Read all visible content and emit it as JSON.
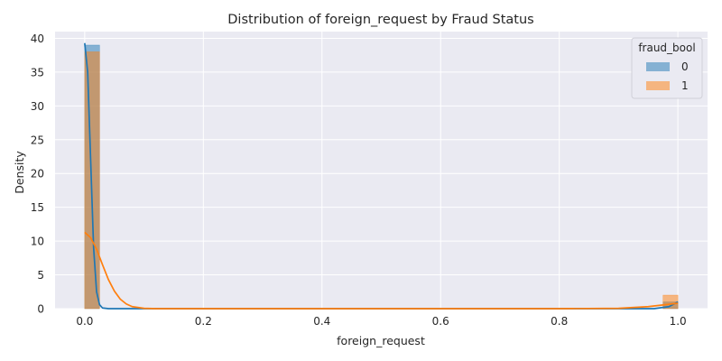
{
  "chart_data": {
    "type": "histogram",
    "title": "Distribution of foreign_request by Fraud Status",
    "xlabel": "foreign_request",
    "ylabel": "Density",
    "xlim": [
      -0.05,
      1.05
    ],
    "ylim": [
      0,
      41
    ],
    "xticks": [
      "0.0",
      "0.2",
      "0.4",
      "0.6",
      "0.8",
      "1.0"
    ],
    "xtick_values": [
      0,
      0.2,
      0.4,
      0.6,
      0.8,
      1.0
    ],
    "yticks": [
      "0",
      "5",
      "10",
      "15",
      "20",
      "25",
      "30",
      "35",
      "40"
    ],
    "ytick_values": [
      0,
      5,
      10,
      15,
      20,
      25,
      30,
      35,
      40
    ],
    "grid": true,
    "legend": {
      "title": "fraud_bool",
      "placement": "top-right",
      "entries": [
        "0",
        "1"
      ]
    },
    "series": [
      {
        "name": "0",
        "color": "#1f77b4",
        "bins": [
          {
            "x0": 0.0,
            "x1": 0.025,
            "density": 39.0
          },
          {
            "x0": 0.975,
            "x1": 1.0,
            "density": 1.0
          }
        ],
        "kde": [
          [
            0.0,
            39.3
          ],
          [
            0.005,
            35.0
          ],
          [
            0.01,
            22.0
          ],
          [
            0.015,
            9.0
          ],
          [
            0.02,
            2.5
          ],
          [
            0.025,
            0.6
          ],
          [
            0.03,
            0.1
          ],
          [
            0.04,
            0.0
          ],
          [
            0.2,
            0.0
          ],
          [
            0.6,
            0.0
          ],
          [
            0.96,
            0.0
          ],
          [
            0.985,
            0.3
          ],
          [
            1.0,
            1.0
          ]
        ]
      },
      {
        "name": "1",
        "color": "#ff7f0e",
        "bins": [
          {
            "x0": 0.0,
            "x1": 0.025,
            "density": 38.0
          },
          {
            "x0": 0.975,
            "x1": 1.0,
            "density": 2.0
          }
        ],
        "kde": [
          [
            0.0,
            11.3
          ],
          [
            0.01,
            10.5
          ],
          [
            0.02,
            8.8
          ],
          [
            0.03,
            6.5
          ],
          [
            0.04,
            4.3
          ],
          [
            0.05,
            2.6
          ],
          [
            0.06,
            1.4
          ],
          [
            0.07,
            0.7
          ],
          [
            0.08,
            0.3
          ],
          [
            0.1,
            0.05
          ],
          [
            0.12,
            0.0
          ],
          [
            0.8,
            0.0
          ],
          [
            0.9,
            0.05
          ],
          [
            0.95,
            0.3
          ],
          [
            1.0,
            0.8
          ]
        ]
      }
    ]
  }
}
